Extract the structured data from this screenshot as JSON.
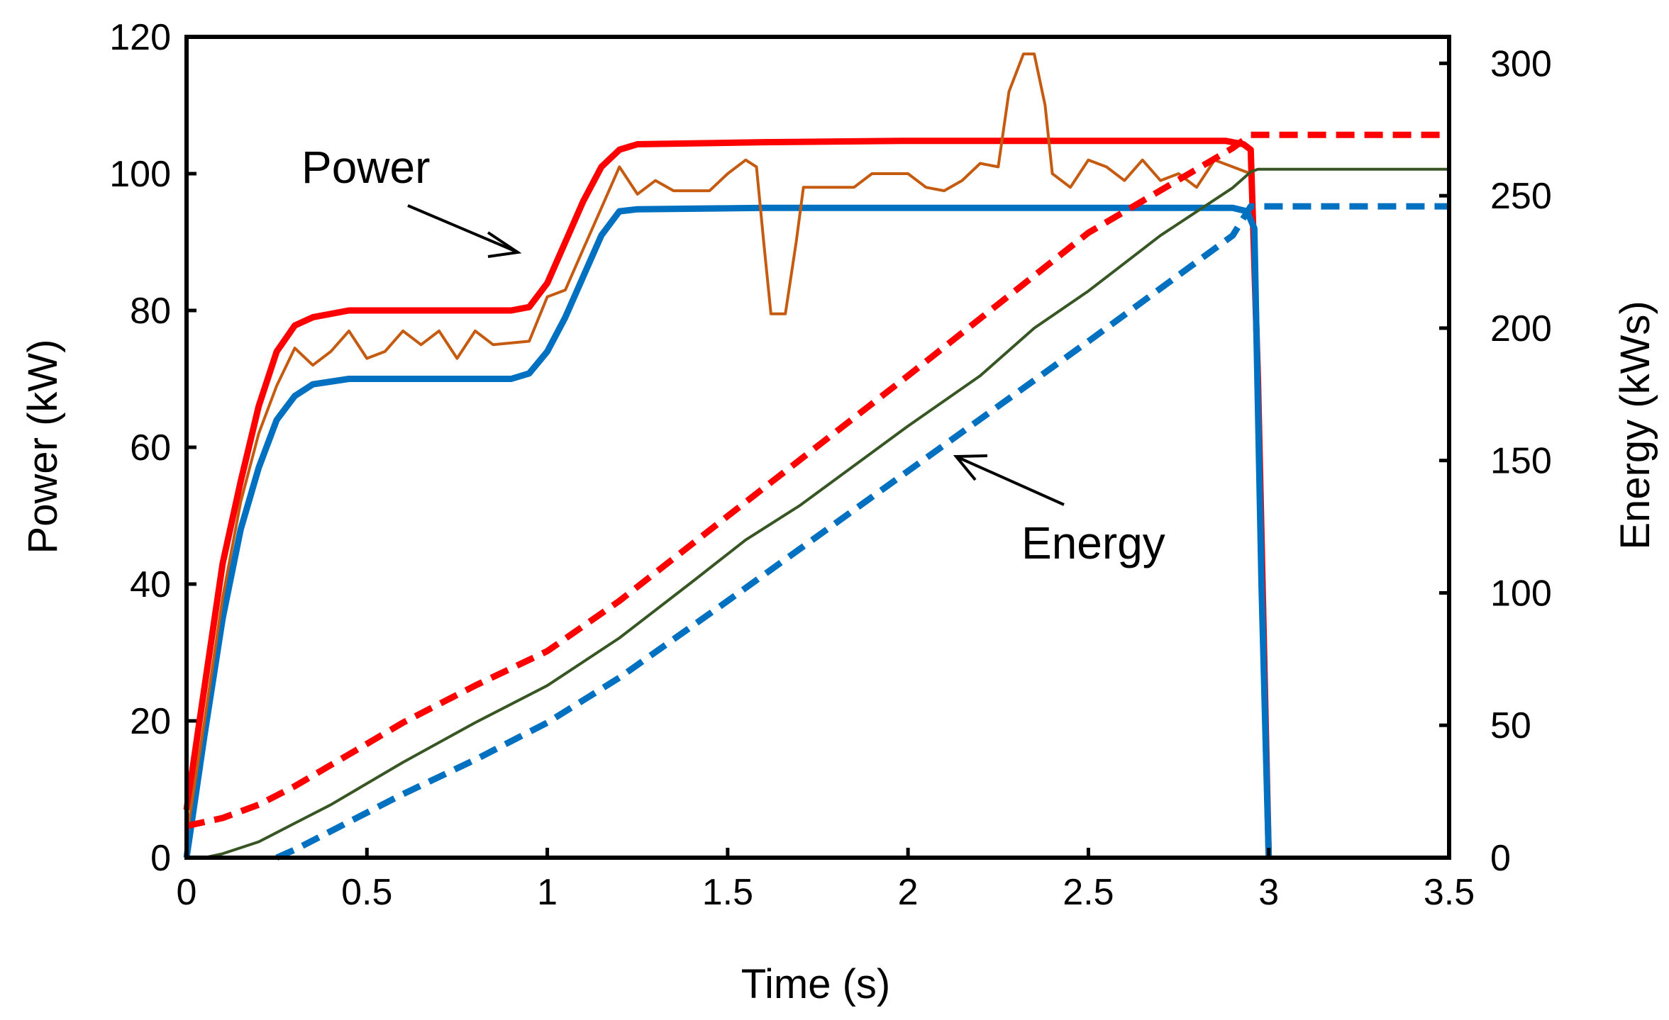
{
  "chart_data": {
    "type": "line",
    "title": "",
    "xlabel": "Time (s)",
    "ylabel": "Power (kW)",
    "y2label": "Energy (kWs)",
    "xlim": [
      0,
      3.5
    ],
    "ylim": [
      0,
      120
    ],
    "y2lim": [
      0,
      310
    ],
    "xticks": [
      "0",
      "0.5",
      "1",
      "1.5",
      "2",
      "2.5",
      "3",
      "3.5"
    ],
    "yticks": [
      "0",
      "20",
      "40",
      "60",
      "80",
      "100",
      "120"
    ],
    "y2ticks": [
      "0",
      "50",
      "100",
      "150",
      "200",
      "250",
      "300"
    ],
    "annotations": [
      {
        "text": "Power",
        "target": "power curves"
      },
      {
        "text": "Energy",
        "target": "energy curves"
      }
    ],
    "series": [
      {
        "name": "Power (red)",
        "axis": "left",
        "color": "#ff0000",
        "style": "solid",
        "weight": "thick",
        "points": [
          [
            0,
            7
          ],
          [
            0.05,
            25
          ],
          [
            0.1,
            43
          ],
          [
            0.15,
            55
          ],
          [
            0.2,
            66
          ],
          [
            0.25,
            74
          ],
          [
            0.3,
            77.8
          ],
          [
            0.35,
            79
          ],
          [
            0.45,
            80
          ],
          [
            0.9,
            80
          ],
          [
            0.95,
            80.5
          ],
          [
            1.0,
            84
          ],
          [
            1.05,
            90
          ],
          [
            1.1,
            96
          ],
          [
            1.15,
            101
          ],
          [
            1.2,
            103.5
          ],
          [
            1.25,
            104.3
          ],
          [
            1.6,
            104.6
          ],
          [
            2.0,
            104.8
          ],
          [
            2.88,
            104.8
          ],
          [
            2.93,
            104.3
          ],
          [
            2.95,
            103.5
          ],
          [
            2.97,
            70
          ],
          [
            3.0,
            0
          ]
        ]
      },
      {
        "name": "Power (blue)",
        "axis": "left",
        "color": "#0070c0",
        "style": "solid",
        "weight": "thick",
        "points": [
          [
            0,
            0
          ],
          [
            0.05,
            18
          ],
          [
            0.1,
            35
          ],
          [
            0.15,
            48
          ],
          [
            0.2,
            57
          ],
          [
            0.25,
            64
          ],
          [
            0.3,
            67.5
          ],
          [
            0.35,
            69.2
          ],
          [
            0.45,
            70
          ],
          [
            0.9,
            70
          ],
          [
            0.95,
            70.8
          ],
          [
            1.0,
            74
          ],
          [
            1.05,
            79
          ],
          [
            1.1,
            85
          ],
          [
            1.15,
            91
          ],
          [
            1.2,
            94.5
          ],
          [
            1.25,
            94.8
          ],
          [
            1.6,
            95
          ],
          [
            2.5,
            95
          ],
          [
            2.9,
            95
          ],
          [
            2.94,
            94.5
          ],
          [
            2.96,
            92
          ],
          [
            2.98,
            40
          ],
          [
            3.0,
            0
          ]
        ]
      },
      {
        "name": "Power (measured)",
        "axis": "left",
        "color": "#c55a11",
        "style": "solid",
        "weight": "thin",
        "points": [
          [
            0,
            3
          ],
          [
            0.05,
            20
          ],
          [
            0.1,
            38
          ],
          [
            0.15,
            52
          ],
          [
            0.2,
            62
          ],
          [
            0.25,
            69
          ],
          [
            0.3,
            74.5
          ],
          [
            0.35,
            72
          ],
          [
            0.4,
            74
          ],
          [
            0.45,
            77
          ],
          [
            0.5,
            73
          ],
          [
            0.55,
            74
          ],
          [
            0.6,
            77
          ],
          [
            0.65,
            75
          ],
          [
            0.7,
            77
          ],
          [
            0.75,
            73
          ],
          [
            0.8,
            77
          ],
          [
            0.85,
            75
          ],
          [
            0.95,
            75.5
          ],
          [
            1.0,
            82
          ],
          [
            1.05,
            83
          ],
          [
            1.1,
            89
          ],
          [
            1.15,
            95
          ],
          [
            1.2,
            101
          ],
          [
            1.25,
            97
          ],
          [
            1.3,
            99
          ],
          [
            1.35,
            97.5
          ],
          [
            1.45,
            97.5
          ],
          [
            1.5,
            100
          ],
          [
            1.55,
            102
          ],
          [
            1.58,
            101
          ],
          [
            1.6,
            90
          ],
          [
            1.62,
            79.5
          ],
          [
            1.66,
            79.5
          ],
          [
            1.69,
            90
          ],
          [
            1.71,
            98
          ],
          [
            1.75,
            98
          ],
          [
            1.85,
            98
          ],
          [
            1.9,
            100
          ],
          [
            2.0,
            100
          ],
          [
            2.05,
            98
          ],
          [
            2.1,
            97.5
          ],
          [
            2.15,
            99
          ],
          [
            2.2,
            101.5
          ],
          [
            2.25,
            101
          ],
          [
            2.28,
            112
          ],
          [
            2.32,
            117.5
          ],
          [
            2.35,
            117.5
          ],
          [
            2.38,
            110
          ],
          [
            2.4,
            100
          ],
          [
            2.45,
            98
          ],
          [
            2.5,
            102
          ],
          [
            2.55,
            101
          ],
          [
            2.6,
            99
          ],
          [
            2.65,
            102
          ],
          [
            2.7,
            99
          ],
          [
            2.75,
            100
          ],
          [
            2.8,
            98
          ],
          [
            2.85,
            102
          ],
          [
            2.9,
            101
          ],
          [
            2.95,
            100
          ]
        ]
      },
      {
        "name": "Energy (red)",
        "axis": "right",
        "color": "#ff0000",
        "style": "dashed",
        "weight": "thick",
        "points": [
          [
            0,
            12
          ],
          [
            0.1,
            15
          ],
          [
            0.2,
            20
          ],
          [
            0.3,
            27
          ],
          [
            0.4,
            35
          ],
          [
            0.6,
            51
          ],
          [
            0.8,
            65
          ],
          [
            1.0,
            78
          ],
          [
            1.2,
            97
          ],
          [
            1.5,
            129
          ],
          [
            2.0,
            182
          ],
          [
            2.5,
            236
          ],
          [
            2.9,
            268
          ],
          [
            2.95,
            273
          ],
          [
            3.5,
            273
          ]
        ]
      },
      {
        "name": "Energy (blue, dashed)",
        "axis": "right",
        "color": "#0070c0",
        "style": "dashed",
        "weight": "thick",
        "points": [
          [
            0.25,
            0
          ],
          [
            0.3,
            3
          ],
          [
            0.4,
            10
          ],
          [
            0.6,
            24
          ],
          [
            0.8,
            37
          ],
          [
            1.0,
            51
          ],
          [
            1.2,
            68
          ],
          [
            1.5,
            97
          ],
          [
            2.0,
            146
          ],
          [
            2.5,
            195
          ],
          [
            2.9,
            235
          ],
          [
            2.95,
            246
          ],
          [
            3.5,
            246
          ]
        ]
      },
      {
        "name": "Energy (green)",
        "axis": "right",
        "color": "#375623",
        "style": "solid",
        "weight": "thin",
        "points": [
          [
            0.05,
            0
          ],
          [
            0.1,
            1.5
          ],
          [
            0.2,
            6
          ],
          [
            0.3,
            13
          ],
          [
            0.4,
            20
          ],
          [
            0.6,
            36
          ],
          [
            0.8,
            51
          ],
          [
            1.0,
            65
          ],
          [
            1.2,
            83
          ],
          [
            1.4,
            104
          ],
          [
            1.55,
            120
          ],
          [
            1.7,
            133
          ],
          [
            2.0,
            163
          ],
          [
            2.2,
            182
          ],
          [
            2.35,
            200
          ],
          [
            2.5,
            214
          ],
          [
            2.7,
            235
          ],
          [
            2.9,
            253
          ],
          [
            2.95,
            259
          ],
          [
            2.97,
            260
          ],
          [
            3.5,
            260
          ]
        ]
      }
    ]
  }
}
